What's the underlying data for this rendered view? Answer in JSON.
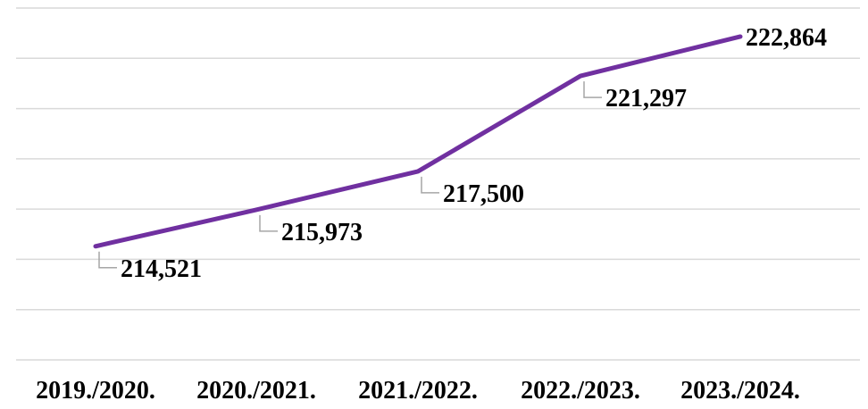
{
  "chart_data": {
    "type": "line",
    "categories": [
      "2019./2020.",
      "2020./2021.",
      "2021./2022.",
      "2022./2023.",
      "2023./2024."
    ],
    "series": [
      {
        "values": [
          214521,
          215973,
          217500,
          221297,
          222864
        ]
      }
    ],
    "data_labels": [
      "214,521",
      "215,973",
      "217,500",
      "221,297",
      "222,864"
    ],
    "title": "",
    "xlabel": "",
    "ylabel": "",
    "ylim": [
      210000,
      224000
    ],
    "grid": true,
    "legend": "none",
    "colors": {
      "line": "#7030a0",
      "grid": "#d9d9d9",
      "leader": "#a6a6a6",
      "text": "#000000"
    }
  }
}
